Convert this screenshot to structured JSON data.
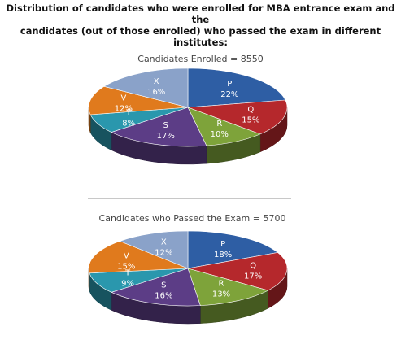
{
  "heading": {
    "line1": "Distribution of candidates who were enrolled for MBA entrance exam and the",
    "line2": "candidates (out of those enrolled) who passed the exam in different",
    "line3": "institutes:"
  },
  "chart_data": [
    {
      "type": "pie",
      "title": "Candidates Enrolled = 8550",
      "categories": [
        "P",
        "Q",
        "R",
        "S",
        "T",
        "V",
        "X"
      ],
      "values": [
        22,
        15,
        10,
        17,
        8,
        12,
        16
      ],
      "unit": "%"
    },
    {
      "type": "pie",
      "title": "Candidates who Passed the Exam = 5700",
      "categories": [
        "P",
        "Q",
        "R",
        "S",
        "T",
        "V",
        "X"
      ],
      "values": [
        18,
        17,
        13,
        16,
        9,
        15,
        12
      ],
      "unit": "%"
    }
  ],
  "colors": {
    "P": "#2e5ea4",
    "Q": "#b5282c",
    "R": "#7ea33a",
    "S": "#5c3d86",
    "T": "#2a97ad",
    "V": "#e07a1d",
    "X": "#8aa2c9"
  }
}
